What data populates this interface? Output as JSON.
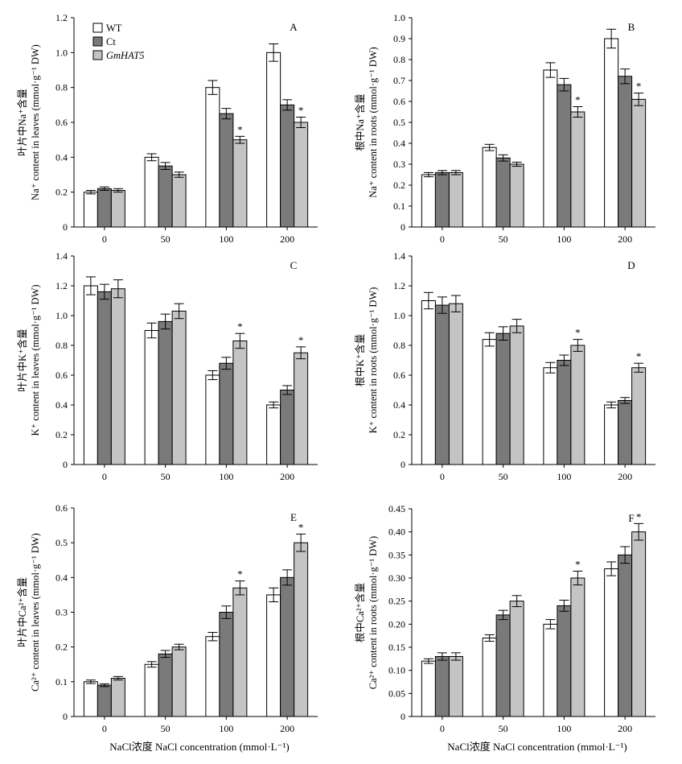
{
  "legend": [
    {
      "name": "WT",
      "italic": false
    },
    {
      "name": "Ct",
      "italic": false
    },
    {
      "name": "GmHAT5",
      "italic": true
    }
  ],
  "colors": {
    "WT": "#ffffff",
    "Ct": "#7a7a7a",
    "GmHAT5": "#c4c4c4",
    "stroke": "#000000"
  },
  "x_title": "NaCl浓度 NaCl concentration (mmol·L⁻¹)",
  "chart_data": [
    {
      "panel": "A",
      "type": "bar",
      "categories": [
        "0",
        "50",
        "100",
        "200"
      ],
      "ylabel_cn": "叶片中Na⁺含量",
      "ylabel_en": "Na⁺ content in leaves (mmol·g⁻¹ DW)",
      "ylim": [
        0,
        1.2
      ],
      "yticks": [
        "0",
        "0.2",
        "0.4",
        "0.6",
        "0.8",
        "1.0",
        "1.2"
      ],
      "series": [
        {
          "name": "WT",
          "values": [
            0.2,
            0.4,
            0.8,
            1.0
          ],
          "err": [
            0.01,
            0.02,
            0.04,
            0.05
          ]
        },
        {
          "name": "Ct",
          "values": [
            0.22,
            0.35,
            0.65,
            0.7
          ],
          "err": [
            0.01,
            0.02,
            0.03,
            0.03
          ]
        },
        {
          "name": "GmHAT5",
          "values": [
            0.21,
            0.3,
            0.5,
            0.6
          ],
          "err": [
            0.01,
            0.015,
            0.02,
            0.03
          ]
        }
      ],
      "significance": [
        null,
        null,
        "*",
        "*"
      ]
    },
    {
      "panel": "B",
      "type": "bar",
      "categories": [
        "0",
        "50",
        "100",
        "200"
      ],
      "ylabel_cn": "根中Na⁺含量",
      "ylabel_en": "Na⁺ content in roots (mmol·g⁻¹ DW)",
      "ylim": [
        0,
        1.0
      ],
      "yticks": [
        "0",
        "0.1",
        "0.2",
        "0.3",
        "0.4",
        "0.5",
        "0.6",
        "0.7",
        "0.8",
        "0.9",
        "1.0"
      ],
      "series": [
        {
          "name": "WT",
          "values": [
            0.25,
            0.38,
            0.75,
            0.9
          ],
          "err": [
            0.01,
            0.015,
            0.035,
            0.045
          ]
        },
        {
          "name": "Ct",
          "values": [
            0.26,
            0.33,
            0.68,
            0.72
          ],
          "err": [
            0.01,
            0.015,
            0.03,
            0.035
          ]
        },
        {
          "name": "GmHAT5",
          "values": [
            0.26,
            0.3,
            0.55,
            0.61
          ],
          "err": [
            0.01,
            0.01,
            0.025,
            0.03
          ]
        }
      ],
      "significance": [
        null,
        null,
        "*",
        "*"
      ]
    },
    {
      "panel": "C",
      "type": "bar",
      "categories": [
        "0",
        "50",
        "100",
        "200"
      ],
      "ylabel_cn": "叶片中K⁺含量",
      "ylabel_en": "K⁺ content in leaves (mmol·g⁻¹ DW)",
      "ylim": [
        0,
        1.4
      ],
      "yticks": [
        "0",
        "0.2",
        "0.4",
        "0.6",
        "0.8",
        "1.0",
        "1.2",
        "1.4"
      ],
      "series": [
        {
          "name": "WT",
          "values": [
            1.2,
            0.9,
            0.6,
            0.4
          ],
          "err": [
            0.06,
            0.05,
            0.03,
            0.02
          ]
        },
        {
          "name": "Ct",
          "values": [
            1.16,
            0.96,
            0.68,
            0.5
          ],
          "err": [
            0.05,
            0.05,
            0.04,
            0.03
          ]
        },
        {
          "name": "GmHAT5",
          "values": [
            1.18,
            1.03,
            0.83,
            0.75
          ],
          "err": [
            0.06,
            0.05,
            0.05,
            0.04
          ]
        }
      ],
      "significance": [
        null,
        null,
        "*",
        "*"
      ]
    },
    {
      "panel": "D",
      "type": "bar",
      "categories": [
        "0",
        "50",
        "100",
        "200"
      ],
      "ylabel_cn": "根中K⁺含量",
      "ylabel_en": "K⁺ content in roots (mmol·g⁻¹ DW)",
      "ylim": [
        0,
        1.4
      ],
      "yticks": [
        "0",
        "0.2",
        "0.4",
        "0.6",
        "0.8",
        "1.0",
        "1.2",
        "1.4"
      ],
      "series": [
        {
          "name": "WT",
          "values": [
            1.1,
            0.84,
            0.65,
            0.4
          ],
          "err": [
            0.055,
            0.045,
            0.035,
            0.02
          ]
        },
        {
          "name": "Ct",
          "values": [
            1.07,
            0.88,
            0.7,
            0.43
          ],
          "err": [
            0.055,
            0.045,
            0.035,
            0.02
          ]
        },
        {
          "name": "GmHAT5",
          "values": [
            1.08,
            0.93,
            0.8,
            0.65
          ],
          "err": [
            0.055,
            0.045,
            0.04,
            0.03
          ]
        }
      ],
      "significance": [
        null,
        null,
        "*",
        "*"
      ]
    },
    {
      "panel": "E",
      "type": "bar",
      "categories": [
        "0",
        "50",
        "100",
        "200"
      ],
      "ylabel_cn": "叶片中Ca²⁺含量",
      "ylabel_en": "Ca²⁺ content in leaves (mmol·g⁻¹ DW)",
      "ylim": [
        0,
        0.6
      ],
      "yticks": [
        "0",
        "0.1",
        "0.2",
        "0.3",
        "0.4",
        "0.5",
        "0.6"
      ],
      "series": [
        {
          "name": "WT",
          "values": [
            0.1,
            0.15,
            0.23,
            0.35
          ],
          "err": [
            0.005,
            0.008,
            0.012,
            0.02
          ]
        },
        {
          "name": "Ct",
          "values": [
            0.09,
            0.18,
            0.3,
            0.4
          ],
          "err": [
            0.004,
            0.01,
            0.018,
            0.022
          ]
        },
        {
          "name": "GmHAT5",
          "values": [
            0.11,
            0.2,
            0.37,
            0.5
          ],
          "err": [
            0.005,
            0.008,
            0.02,
            0.025
          ]
        }
      ],
      "significance": [
        null,
        null,
        "*",
        "*"
      ]
    },
    {
      "panel": "F",
      "type": "bar",
      "categories": [
        "0",
        "50",
        "100",
        "200"
      ],
      "ylabel_cn": "根中Ca²⁺含量",
      "ylabel_en": "Ca²⁺ content in roots (mmol·g⁻¹ DW)",
      "ylim": [
        0,
        0.45
      ],
      "yticks": [
        "0",
        "0.05",
        "0.10",
        "0.15",
        "0.20",
        "0.25",
        "0.30",
        "0.35",
        "0.40",
        "0.45"
      ],
      "series": [
        {
          "name": "WT",
          "values": [
            0.12,
            0.17,
            0.2,
            0.32
          ],
          "err": [
            0.005,
            0.007,
            0.01,
            0.015
          ]
        },
        {
          "name": "Ct",
          "values": [
            0.13,
            0.22,
            0.24,
            0.35
          ],
          "err": [
            0.008,
            0.01,
            0.012,
            0.018
          ]
        },
        {
          "name": "GmHAT5",
          "values": [
            0.13,
            0.25,
            0.3,
            0.4
          ],
          "err": [
            0.008,
            0.012,
            0.015,
            0.018
          ]
        }
      ],
      "significance": [
        null,
        null,
        "*",
        "*"
      ]
    }
  ]
}
